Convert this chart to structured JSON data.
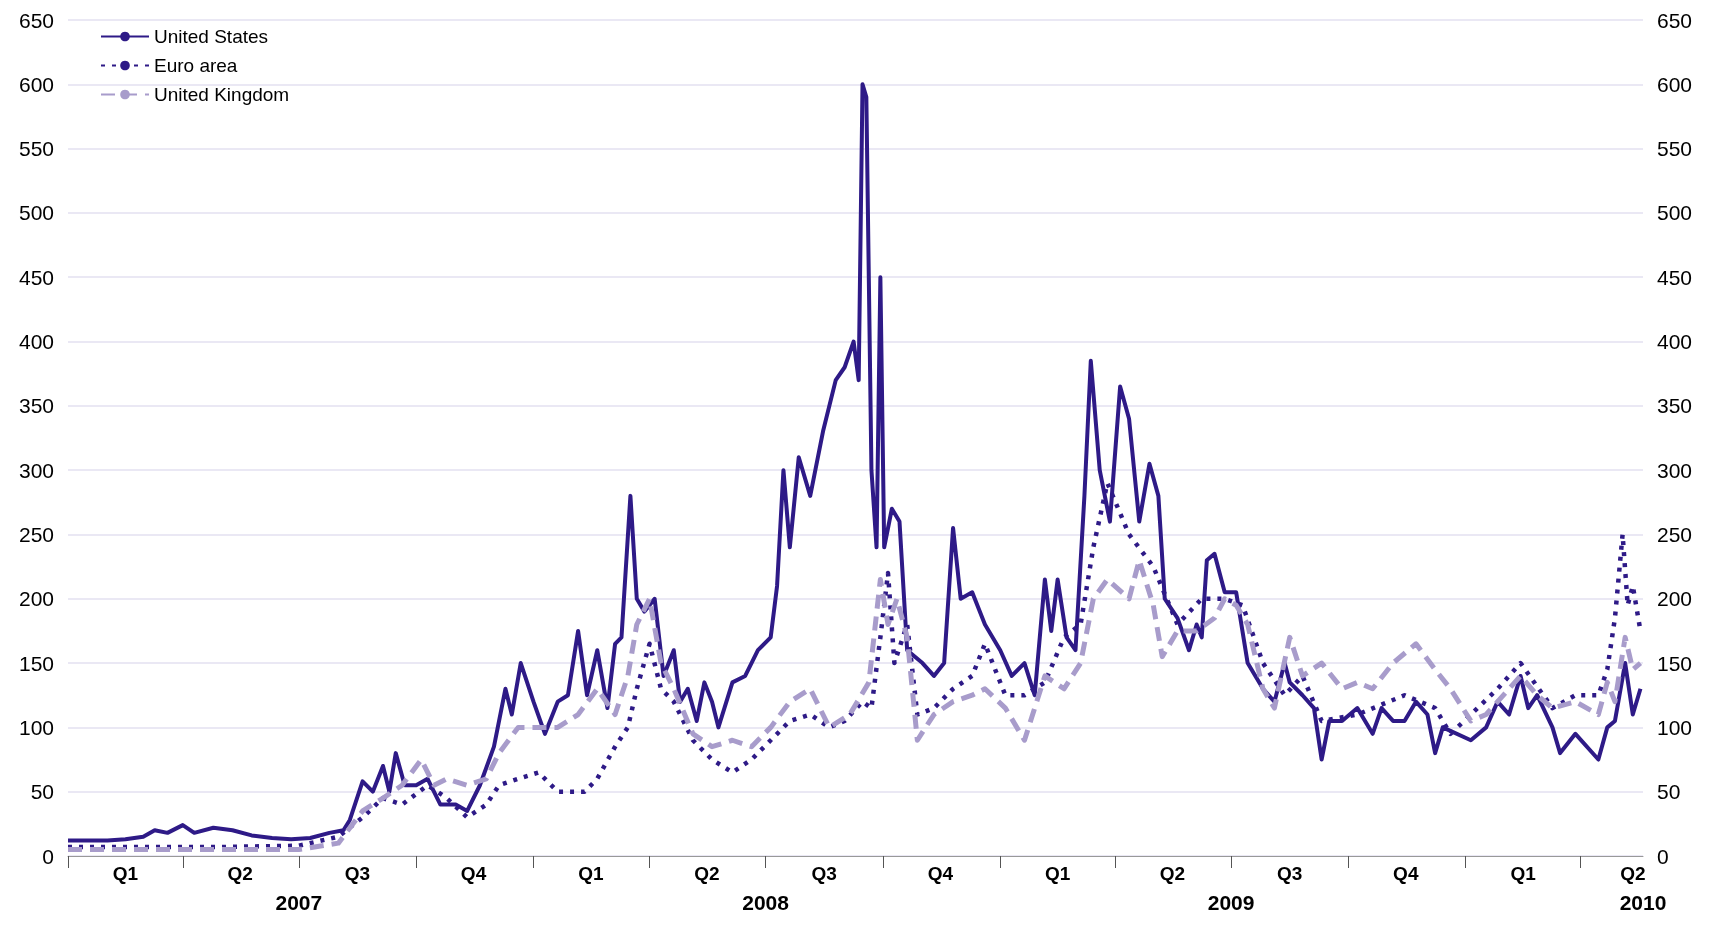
{
  "chart_data": {
    "type": "line",
    "xlim": [
      "2007-01-01",
      "2010-05-20"
    ],
    "xticks": [
      {
        "value": "2007-01-01",
        "label": null
      },
      {
        "value": "2007-02-15",
        "label": "Q1"
      },
      {
        "value": "2007-04-01",
        "label": null
      },
      {
        "value": "2007-05-16",
        "label": "Q2"
      },
      {
        "value": "2007-07-01",
        "label": null
      },
      {
        "value": "2007-08-16",
        "label": "Q3"
      },
      {
        "value": "2007-10-01",
        "label": null
      },
      {
        "value": "2007-11-15",
        "label": "Q4"
      },
      {
        "value": "2008-01-01",
        "label": null
      },
      {
        "value": "2008-02-15",
        "label": "Q1"
      },
      {
        "value": "2008-04-01",
        "label": null
      },
      {
        "value": "2008-05-16",
        "label": "Q2"
      },
      {
        "value": "2008-07-01",
        "label": null
      },
      {
        "value": "2008-08-16",
        "label": "Q3"
      },
      {
        "value": "2008-10-01",
        "label": null
      },
      {
        "value": "2008-11-15",
        "label": "Q4"
      },
      {
        "value": "2009-01-01",
        "label": null
      },
      {
        "value": "2009-02-15",
        "label": "Q1"
      },
      {
        "value": "2009-04-01",
        "label": null
      },
      {
        "value": "2009-05-16",
        "label": "Q2"
      },
      {
        "value": "2009-07-01",
        "label": null
      },
      {
        "value": "2009-08-16",
        "label": "Q3"
      },
      {
        "value": "2009-10-01",
        "label": null
      },
      {
        "value": "2009-11-15",
        "label": "Q4"
      },
      {
        "value": "2010-01-01",
        "label": null
      },
      {
        "value": "2010-02-15",
        "label": "Q1"
      },
      {
        "value": "2010-04-01",
        "label": null
      },
      {
        "value": "2010-05-12",
        "label": "Q2"
      }
    ],
    "x2lim": [
      "2007-01-01",
      "2010-05-20"
    ],
    "x2ticks": [
      {
        "value": "2007-07-01",
        "label": "2007"
      },
      {
        "value": "2008-07-01",
        "label": "2008"
      },
      {
        "value": "2009-07-01",
        "label": "2009"
      },
      {
        "value": "2010-05-20",
        "label": "2010"
      }
    ],
    "ylim": [
      0,
      650
    ],
    "yticks": [
      0,
      50,
      100,
      150,
      200,
      250,
      300,
      350,
      400,
      450,
      500,
      550,
      600,
      650
    ],
    "y2lim": [
      0,
      650
    ],
    "y2ticks": [
      0,
      50,
      100,
      150,
      200,
      250,
      300,
      350,
      400,
      450,
      500,
      550,
      600,
      650
    ],
    "grid": "y",
    "legend": "top left",
    "marker": "none",
    "series": [
      {
        "name": "United States",
        "color": "#2e1a87",
        "line_style": "solid",
        "x": [
          "2007-01-01",
          "2007-01-15",
          "2007-02-01",
          "2007-02-15",
          "2007-03-01",
          "2007-03-10",
          "2007-03-20",
          "2007-04-01",
          "2007-04-10",
          "2007-04-25",
          "2007-05-10",
          "2007-05-25",
          "2007-06-10",
          "2007-06-25",
          "2007-07-10",
          "2007-07-25",
          "2007-08-05",
          "2007-08-10",
          "2007-08-20",
          "2007-08-28",
          "2007-09-05",
          "2007-09-10",
          "2007-09-15",
          "2007-09-22",
          "2007-10-01",
          "2007-10-10",
          "2007-10-20",
          "2007-11-01",
          "2007-11-10",
          "2007-11-20",
          "2007-12-01",
          "2007-12-10",
          "2007-12-15",
          "2007-12-22",
          "2008-01-01",
          "2008-01-10",
          "2008-01-20",
          "2008-01-28",
          "2008-02-05",
          "2008-02-12",
          "2008-02-20",
          "2008-02-28",
          "2008-03-05",
          "2008-03-10",
          "2008-03-17",
          "2008-03-22",
          "2008-03-28",
          "2008-04-05",
          "2008-04-12",
          "2008-04-20",
          "2008-04-25",
          "2008-05-01",
          "2008-05-08",
          "2008-05-14",
          "2008-05-20",
          "2008-05-25",
          "2008-06-05",
          "2008-06-15",
          "2008-06-25",
          "2008-07-05",
          "2008-07-10",
          "2008-07-15",
          "2008-07-20",
          "2008-07-27",
          "2008-08-05",
          "2008-08-15",
          "2008-08-25",
          "2008-09-01",
          "2008-09-08",
          "2008-09-12",
          "2008-09-15",
          "2008-09-18",
          "2008-09-22",
          "2008-09-26",
          "2008-09-29",
          "2008-10-02",
          "2008-10-08",
          "2008-10-14",
          "2008-10-20",
          "2008-11-01",
          "2008-11-10",
          "2008-11-18",
          "2008-11-25",
          "2008-12-01",
          "2008-12-10",
          "2008-12-20",
          "2009-01-01",
          "2009-01-10",
          "2009-01-20",
          "2009-01-28",
          "2009-02-05",
          "2009-02-10",
          "2009-02-15",
          "2009-02-22",
          "2009-03-01",
          "2009-03-08",
          "2009-03-13",
          "2009-03-20",
          "2009-03-28",
          "2009-04-05",
          "2009-04-12",
          "2009-04-20",
          "2009-04-28",
          "2009-05-05",
          "2009-05-10",
          "2009-05-20",
          "2009-05-29",
          "2009-06-04",
          "2009-06-08",
          "2009-06-12",
          "2009-06-18",
          "2009-06-26",
          "2009-07-05",
          "2009-07-14",
          "2009-07-26",
          "2009-08-04",
          "2009-08-12",
          "2009-08-16",
          "2009-08-26",
          "2009-09-04",
          "2009-09-10",
          "2009-09-16",
          "2009-09-26",
          "2009-10-08",
          "2009-10-20",
          "2009-10-27",
          "2009-11-05",
          "2009-11-14",
          "2009-11-23",
          "2009-12-02",
          "2009-12-08",
          "2009-12-14",
          "2010-01-05",
          "2010-01-17",
          "2010-01-26",
          "2010-02-04",
          "2010-02-13",
          "2010-02-19",
          "2010-02-26",
          "2010-03-10",
          "2010-03-16",
          "2010-03-28",
          "2010-04-15",
          "2010-04-22",
          "2010-04-28",
          "2010-05-06",
          "2010-05-12",
          "2010-05-18"
        ],
        "values": [
          12,
          12,
          12,
          13,
          15,
          20,
          18,
          24,
          18,
          22,
          20,
          16,
          14,
          13,
          14,
          18,
          20,
          28,
          58,
          50,
          70,
          50,
          80,
          55,
          55,
          60,
          40,
          40,
          35,
          55,
          85,
          130,
          110,
          150,
          120,
          95,
          120,
          125,
          175,
          125,
          160,
          115,
          165,
          170,
          280,
          200,
          190,
          200,
          140,
          160,
          120,
          130,
          105,
          135,
          120,
          100,
          135,
          140,
          160,
          170,
          210,
          300,
          240,
          310,
          280,
          330,
          370,
          380,
          400,
          370,
          600,
          590,
          300,
          240,
          450,
          240,
          270,
          260,
          160,
          150,
          140,
          150,
          255,
          200,
          205,
          180,
          160,
          140,
          150,
          125,
          215,
          175,
          215,
          170,
          160,
          280,
          385,
          300,
          260,
          365,
          340,
          260,
          305,
          280,
          200,
          185,
          160,
          180,
          170,
          230,
          235,
          205,
          205,
          150,
          130,
          120,
          150,
          135,
          125,
          115,
          75,
          105,
          105,
          115,
          95,
          115,
          105,
          105,
          120,
          110,
          80,
          100,
          90,
          100,
          120,
          110,
          140,
          115,
          125,
          100,
          80,
          95,
          75,
          100,
          105,
          150,
          110,
          130
        ]
      },
      {
        "name": "Euro area",
        "color": "#2e1a87",
        "line_style": "dotted",
        "x": [
          "2007-01-01",
          "2007-03-01",
          "2007-05-01",
          "2007-07-01",
          "2007-08-01",
          "2007-08-20",
          "2007-09-05",
          "2007-09-20",
          "2007-10-10",
          "2007-10-25",
          "2007-11-10",
          "2007-11-25",
          "2007-12-05",
          "2007-12-20",
          "2008-01-05",
          "2008-01-20",
          "2008-02-10",
          "2008-02-20",
          "2008-03-05",
          "2008-03-15",
          "2008-03-22",
          "2008-04-01",
          "2008-04-10",
          "2008-04-20",
          "2008-05-05",
          "2008-05-20",
          "2008-06-05",
          "2008-06-20",
          "2008-07-05",
          "2008-07-20",
          "2008-08-05",
          "2008-08-20",
          "2008-09-01",
          "2008-09-15",
          "2008-09-22",
          "2008-09-29",
          "2008-10-05",
          "2008-10-10",
          "2008-10-20",
          "2008-10-28",
          "2008-11-10",
          "2008-11-25",
          "2008-12-10",
          "2008-12-20",
          "2009-01-05",
          "2009-01-20",
          "2009-02-05",
          "2009-02-20",
          "2009-03-05",
          "2009-03-15",
          "2009-03-26",
          "2009-04-12",
          "2009-05-01",
          "2009-05-20",
          "2009-06-08",
          "2009-06-26",
          "2009-07-10",
          "2009-07-26",
          "2009-08-12",
          "2009-08-26",
          "2009-09-10",
          "2009-10-08",
          "2009-11-14",
          "2009-12-08",
          "2009-12-20",
          "2010-01-05",
          "2010-01-26",
          "2010-02-13",
          "2010-03-10",
          "2010-03-28",
          "2010-04-15",
          "2010-04-22",
          "2010-04-28",
          "2010-05-04",
          "2010-05-08",
          "2010-05-12",
          "2010-05-18"
        ],
        "values": [
          7,
          7,
          7,
          8,
          15,
          30,
          45,
          40,
          55,
          45,
          30,
          40,
          55,
          60,
          65,
          50,
          50,
          60,
          85,
          100,
          130,
          165,
          130,
          120,
          90,
          75,
          65,
          75,
          90,
          105,
          110,
          100,
          105,
          120,
          115,
          170,
          220,
          150,
          180,
          110,
          115,
          130,
          140,
          165,
          125,
          125,
          135,
          170,
          180,
          240,
          290,
          250,
          225,
          180,
          200,
          200,
          195,
          150,
          125,
          140,
          105,
          110,
          125,
          115,
          95,
          110,
          130,
          150,
          115,
          125,
          125,
          145,
          185,
          250,
          195,
          210,
          175
        ]
      },
      {
        "name": "United Kingdom",
        "color": "#a89ccb",
        "line_style": "dashed",
        "x": [
          "2007-01-01",
          "2007-03-01",
          "2007-05-01",
          "2007-07-01",
          "2007-08-01",
          "2007-08-20",
          "2007-09-05",
          "2007-09-20",
          "2007-10-05",
          "2007-10-15",
          "2007-10-25",
          "2007-11-10",
          "2007-11-25",
          "2007-12-05",
          "2007-12-20",
          "2008-01-05",
          "2008-01-20",
          "2008-02-05",
          "2008-02-20",
          "2008-03-05",
          "2008-03-15",
          "2008-03-22",
          "2008-04-01",
          "2008-04-10",
          "2008-04-20",
          "2008-05-05",
          "2008-05-20",
          "2008-06-05",
          "2008-06-20",
          "2008-07-05",
          "2008-07-20",
          "2008-08-05",
          "2008-08-20",
          "2008-09-05",
          "2008-09-20",
          "2008-09-29",
          "2008-10-05",
          "2008-10-12",
          "2008-10-20",
          "2008-10-28",
          "2008-11-10",
          "2008-11-25",
          "2008-12-10",
          "2008-12-20",
          "2009-01-05",
          "2009-01-20",
          "2009-02-05",
          "2009-02-20",
          "2009-03-05",
          "2009-03-15",
          "2009-03-26",
          "2009-04-12",
          "2009-04-20",
          "2009-05-01",
          "2009-05-08",
          "2009-05-20",
          "2009-06-04",
          "2009-06-18",
          "2009-06-26",
          "2009-07-05",
          "2009-07-14",
          "2009-07-26",
          "2009-08-04",
          "2009-08-16",
          "2009-08-26",
          "2009-09-10",
          "2009-09-26",
          "2009-10-08",
          "2009-10-20",
          "2009-11-05",
          "2009-11-23",
          "2009-12-08",
          "2009-12-20",
          "2010-01-05",
          "2010-01-17",
          "2010-01-26",
          "2010-02-13",
          "2010-02-26",
          "2010-03-10",
          "2010-03-28",
          "2010-04-15",
          "2010-04-22",
          "2010-04-28",
          "2010-05-06",
          "2010-05-12",
          "2010-05-18"
        ],
        "values": [
          5,
          5,
          5,
          5,
          10,
          35,
          45,
          55,
          75,
          55,
          60,
          55,
          60,
          80,
          100,
          100,
          100,
          110,
          130,
          110,
          140,
          180,
          200,
          150,
          130,
          95,
          85,
          90,
          85,
          100,
          120,
          130,
          100,
          110,
          135,
          215,
          180,
          200,
          170,
          90,
          110,
          120,
          125,
          130,
          115,
          90,
          140,
          130,
          150,
          200,
          215,
          200,
          230,
          195,
          155,
          175,
          175,
          185,
          200,
          195,
          180,
          130,
          115,
          170,
          140,
          150,
          130,
          135,
          130,
          150,
          165,
          145,
          130,
          105,
          110,
          120,
          140,
          125,
          115,
          120,
          110,
          135,
          120,
          170,
          145,
          150
        ]
      }
    ]
  }
}
